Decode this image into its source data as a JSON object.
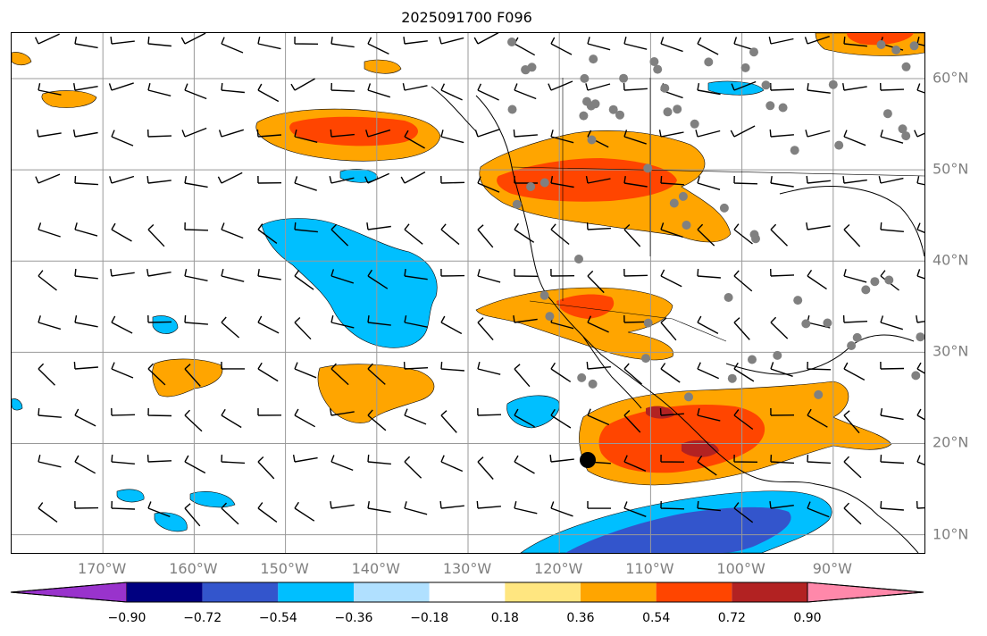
{
  "title": "2025091700 F096",
  "map": {
    "lat_labels": [
      {
        "text": "60°N",
        "lat": 60
      },
      {
        "text": "50°N",
        "lat": 50
      },
      {
        "text": "40°N",
        "lat": 40
      },
      {
        "text": "30°N",
        "lat": 30
      },
      {
        "text": "20°N",
        "lat": 20
      },
      {
        "text": "10°N",
        "lat": 10
      }
    ],
    "lon_labels": [
      {
        "text": "170°W",
        "lon": -170
      },
      {
        "text": "160°W",
        "lon": -160
      },
      {
        "text": "150°W",
        "lon": -150
      },
      {
        "text": "140°W",
        "lon": -140
      },
      {
        "text": "130°W",
        "lon": -130
      },
      {
        "text": "120°W",
        "lon": -120
      },
      {
        "text": "110°W",
        "lon": -110
      },
      {
        "text": "100°W",
        "lon": -100
      },
      {
        "text": "90°W",
        "lon": -90
      }
    ],
    "extent": {
      "lon_min": -180,
      "lon_max": -80,
      "lat_min": 8,
      "lat_max": 65
    }
  },
  "colorbar": {
    "ticks": [
      "−0.90",
      "−0.72",
      "−0.54",
      "−0.36",
      "−0.18",
      "0.18",
      "0.36",
      "0.54",
      "0.72",
      "0.90"
    ],
    "colors": [
      "#9933cc",
      "#000080",
      "#3355cc",
      "#00bfff",
      "#b0e0ff",
      "#ffffff",
      "#ffe680",
      "#ffa500",
      "#ff4500",
      "#b22222",
      "#ff88aa"
    ]
  }
}
